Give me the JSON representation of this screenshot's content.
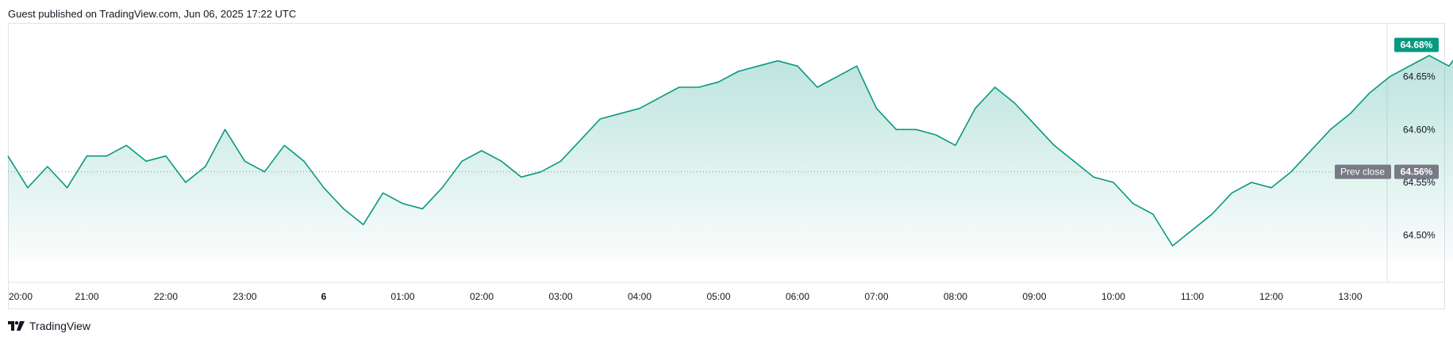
{
  "header": {
    "text": "Guest published on TradingView.com, Jun 06, 2025 17:22 UTC"
  },
  "footer": {
    "logo_icon": "tradingview-logo-icon",
    "brand": "TradingView"
  },
  "colors": {
    "line": "#089981",
    "fill_top": "#089981",
    "label_bg": "#089981",
    "prev_close_bg": "#787b86",
    "grid": "#e0e3eb"
  },
  "chart_data": {
    "type": "area",
    "x_ticks": [
      "20:00",
      "21:00",
      "22:00",
      "23:00",
      "6",
      "01:00",
      "02:00",
      "03:00",
      "04:00",
      "05:00",
      "06:00",
      "07:00",
      "08:00",
      "09:00",
      "10:00",
      "11:00",
      "12:00",
      "13:00"
    ],
    "y_ticks": [
      "64.50%",
      "64.55%",
      "64.60%",
      "64.65%"
    ],
    "ylim": [
      64.475,
      64.7
    ],
    "last_value": 64.68,
    "last_label": "64.68%",
    "prev_close": {
      "label": "Prev close",
      "value": 64.56,
      "value_label": "64.56%"
    },
    "x": [
      -1.0,
      -0.75,
      -0.5,
      -0.25,
      0.0,
      0.25,
      0.5,
      0.75,
      1.0,
      1.25,
      1.5,
      1.75,
      2.0,
      2.25,
      2.5,
      2.75,
      3.0,
      3.25,
      3.5,
      3.75,
      4.0,
      4.25,
      4.5,
      4.75,
      5.0,
      5.25,
      5.5,
      5.75,
      6.0,
      6.25,
      6.5,
      6.75,
      7.0,
      7.25,
      7.5,
      7.75,
      8.0,
      8.25,
      8.5,
      8.75,
      9.0,
      9.25,
      9.5,
      9.75,
      10.0,
      10.25,
      10.5,
      10.75,
      11.0,
      11.25,
      11.5,
      11.75,
      12.0,
      12.25,
      12.5,
      12.75,
      13.0,
      13.25,
      13.5,
      13.75,
      14.0,
      14.25,
      14.5,
      14.75,
      15.0,
      15.25,
      15.5,
      15.75,
      16.0,
      16.25,
      16.5,
      16.75,
      17.0,
      17.25,
      17.45
    ],
    "y": [
      64.575,
      64.545,
      64.565,
      64.545,
      64.575,
      64.575,
      64.585,
      64.57,
      64.575,
      64.55,
      64.565,
      64.6,
      64.57,
      64.56,
      64.585,
      64.57,
      64.545,
      64.525,
      64.51,
      64.54,
      64.53,
      64.525,
      64.545,
      64.57,
      64.58,
      64.57,
      64.555,
      64.56,
      64.57,
      64.59,
      64.61,
      64.615,
      64.62,
      64.63,
      64.64,
      64.64,
      64.645,
      64.655,
      64.66,
      64.665,
      64.66,
      64.64,
      64.65,
      64.66,
      64.62,
      64.6,
      64.6,
      64.595,
      64.585,
      64.62,
      64.64,
      64.625,
      64.605,
      64.585,
      64.57,
      64.555,
      64.55,
      64.53,
      64.52,
      64.49,
      64.505,
      64.52,
      64.54,
      64.55,
      64.545,
      64.56,
      64.58,
      64.6,
      64.615,
      64.635,
      64.65,
      64.66,
      64.67,
      64.66,
      64.68
    ]
  }
}
